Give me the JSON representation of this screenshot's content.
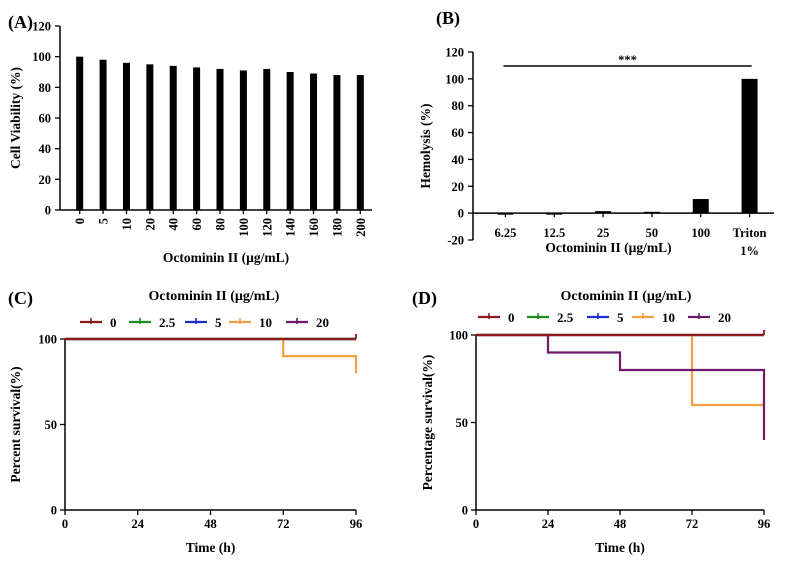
{
  "chart_data": [
    {
      "type": "bar",
      "panel": "(A)",
      "categories": [
        "0",
        "5",
        "10",
        "20",
        "40",
        "60",
        "80",
        "100",
        "120",
        "140",
        "160",
        "180",
        "200"
      ],
      "values": [
        100,
        98,
        96,
        95,
        94,
        93,
        92,
        91,
        92,
        90,
        89,
        88,
        88
      ],
      "xlabel": "Octominin II  (µg/mL)",
      "ylabel": "Cell Viability (%)",
      "ylim": [
        0,
        120
      ],
      "yticks": [
        0,
        20,
        40,
        60,
        80,
        100,
        120
      ]
    },
    {
      "type": "bar",
      "panel": "(B)",
      "categories": [
        "6.25",
        "12.5",
        "25",
        "50",
        "100",
        "Triton 1%"
      ],
      "values": [
        -1,
        -0.5,
        1.5,
        1,
        10.5,
        100
      ],
      "xlabel": "Octominin II (µg/mL)",
      "ylabel": "Hemolysis (%)",
      "ylim": [
        -20,
        120
      ],
      "yticks": [
        -20,
        0,
        20,
        40,
        60,
        80,
        100,
        120
      ],
      "annotation": "***"
    },
    {
      "type": "line",
      "panel": "(C)",
      "legend_title": "Octominin II (µg/mL)",
      "xlabel": "Time (h)",
      "ylabel": "Percent survival(%)",
      "xlim": [
        0,
        96
      ],
      "ylim": [
        0,
        100
      ],
      "xticks": [
        0,
        24,
        48,
        72,
        96
      ],
      "yticks": [
        0,
        50,
        100
      ],
      "series": [
        {
          "name": "0",
          "color": "#8b1a1a",
          "x": [
            0,
            96
          ],
          "y": [
            100,
            100
          ],
          "end_tick": true
        },
        {
          "name": "2.5",
          "color": "#1e8f1e",
          "x": [
            0,
            96
          ],
          "y": [
            100,
            100
          ]
        },
        {
          "name": "5",
          "color": "#1c2fcf",
          "x": [
            0,
            96
          ],
          "y": [
            100,
            100
          ]
        },
        {
          "name": "10",
          "color": "#f3a13f",
          "x": [
            0,
            72,
            72,
            96,
            96
          ],
          "y": [
            100,
            100,
            90,
            90,
            80
          ]
        },
        {
          "name": "20",
          "color": "#6b1a6b",
          "x": [
            0,
            96
          ],
          "y": [
            100,
            100
          ]
        }
      ]
    },
    {
      "type": "line",
      "panel": "(D)",
      "legend_title": "Octominin II (µg/mL)",
      "xlabel": "Time (h)",
      "ylabel": "Percentage survival(%)",
      "xlim": [
        0,
        96
      ],
      "ylim": [
        0,
        100
      ],
      "xticks": [
        0,
        24,
        48,
        72,
        96
      ],
      "yticks": [
        0,
        50,
        100
      ],
      "series": [
        {
          "name": "0",
          "color": "#8b1a1a",
          "x": [
            0,
            96
          ],
          "y": [
            100,
            100
          ],
          "end_tick": true
        },
        {
          "name": "2.5",
          "color": "#1e8f1e",
          "x": [
            0,
            96
          ],
          "y": [
            100,
            100
          ]
        },
        {
          "name": "5",
          "color": "#1c2fcf",
          "x": [
            0,
            96
          ],
          "y": [
            100,
            100
          ]
        },
        {
          "name": "10",
          "color": "#f3a13f",
          "x": [
            0,
            72,
            72,
            96,
            96
          ],
          "y": [
            100,
            100,
            60,
            60,
            60
          ]
        },
        {
          "name": "20",
          "color": "#6b1a6b",
          "x": [
            0,
            24,
            24,
            48,
            48,
            96,
            96
          ],
          "y": [
            100,
            100,
            90,
            90,
            80,
            80,
            40
          ]
        }
      ]
    }
  ]
}
